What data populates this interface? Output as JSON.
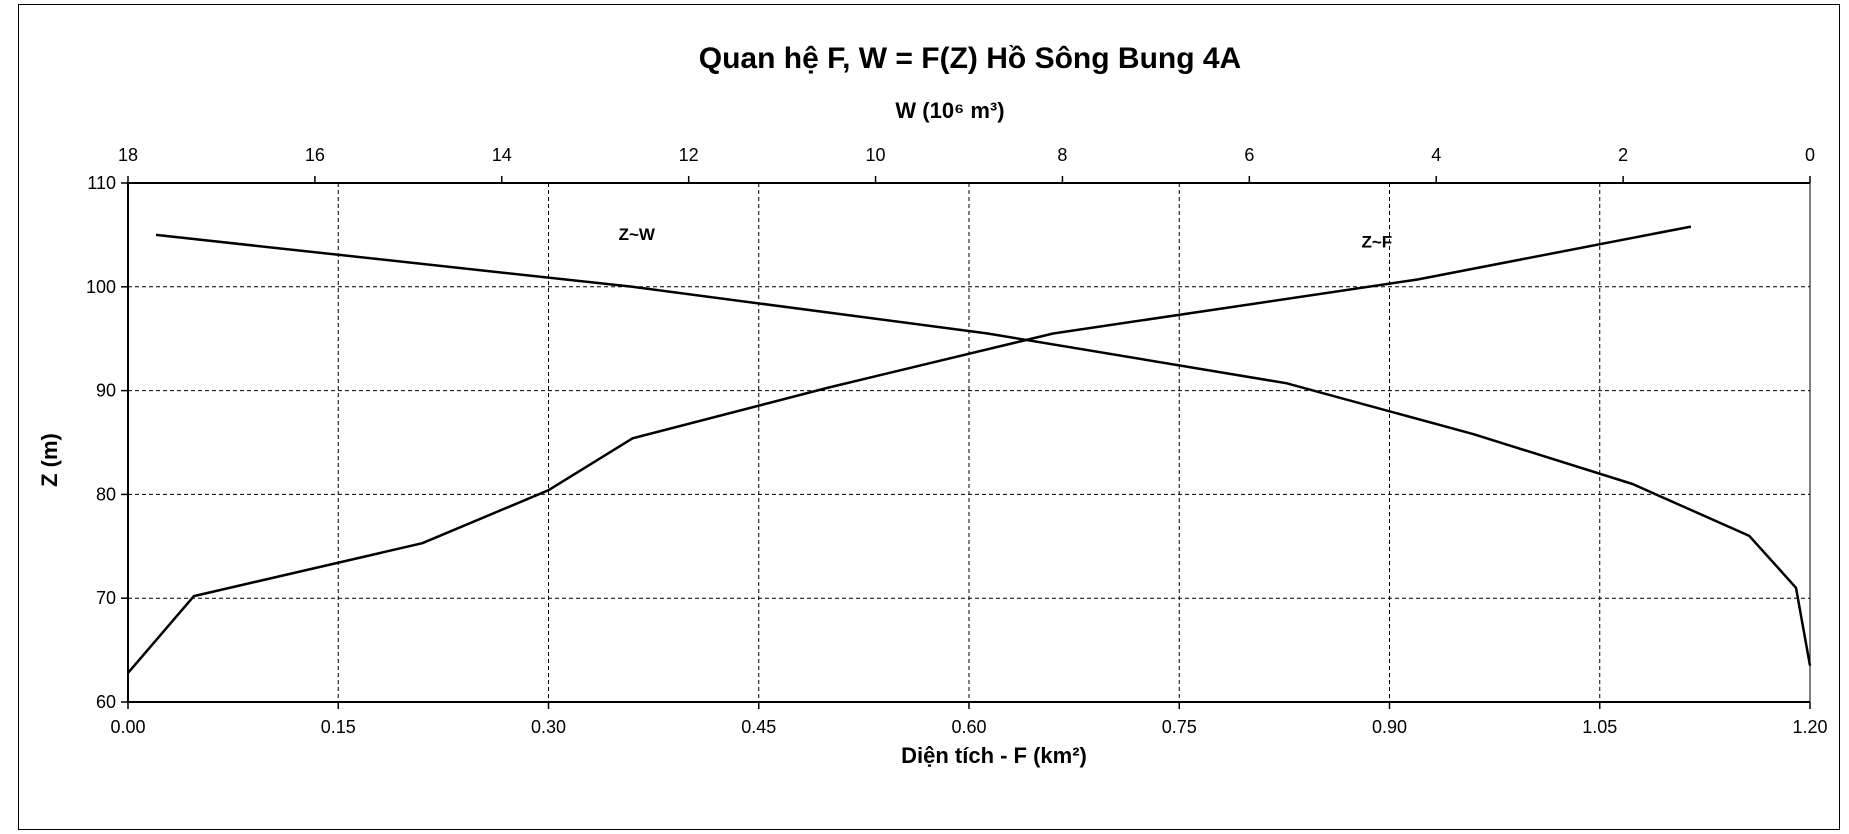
{
  "chart_data": {
    "type": "line",
    "title": "Quan hệ F, W = F(Z) Hồ Sông Bung 4A",
    "ylabel": "Z (m)",
    "xlabel_bottom": "Diện tích - F (km²)",
    "xlabel_top": "W (10⁶ m³)",
    "ylim": [
      60,
      110
    ],
    "xlim_bottom": [
      0,
      1.2
    ],
    "xlim_top": [
      18,
      0
    ],
    "x_bottom_reversed": false,
    "x_top_reversed": true,
    "yticks": [
      "60",
      "70",
      "80",
      "90",
      "100",
      "110"
    ],
    "xticks_bottom": [
      "0.00",
      "0.15",
      "0.30",
      "0.45",
      "0.60",
      "0.75",
      "0.90",
      "1.05",
      "1.20"
    ],
    "xticks_top": [
      "18",
      "16",
      "14",
      "12",
      "10",
      "8",
      "6",
      "4",
      "2",
      "0"
    ],
    "grid": true,
    "grid_style": "dashed",
    "line_color": "#000000",
    "series": [
      {
        "name": "Z~W",
        "axis": "top",
        "points": [
          {
            "x": 17.7,
            "y": 105
          },
          {
            "x": 12.6,
            "y": 100
          },
          {
            "x": 8.8,
            "y": 95.5
          },
          {
            "x": 5.6,
            "y": 90.7
          },
          {
            "x": 3.6,
            "y": 85.8
          },
          {
            "x": 1.9,
            "y": 81
          },
          {
            "x": 0.65,
            "y": 76
          },
          {
            "x": 0.15,
            "y": 71
          },
          {
            "x": 0.0,
            "y": 63.5
          }
        ]
      },
      {
        "name": "Z~F",
        "axis": "bottom",
        "points": [
          {
            "x": 0.0,
            "y": 62.8
          },
          {
            "x": 0.047,
            "y": 70.2
          },
          {
            "x": 0.21,
            "y": 75.3
          },
          {
            "x": 0.3,
            "y": 80.4
          },
          {
            "x": 0.36,
            "y": 85.4
          },
          {
            "x": 0.5,
            "y": 90.3
          },
          {
            "x": 0.66,
            "y": 95.5
          },
          {
            "x": 0.92,
            "y": 100.7
          },
          {
            "x": 1.115,
            "y": 105.8
          }
        ]
      }
    ]
  }
}
